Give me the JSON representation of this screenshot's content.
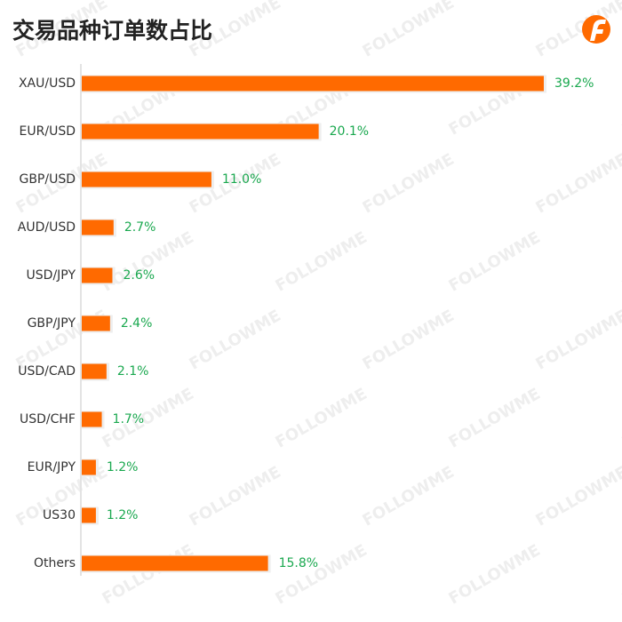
{
  "chart_data": {
    "type": "bar",
    "orientation": "horizontal",
    "title": "交易品种订单数占比",
    "watermark": "FOLLOWME",
    "categories": [
      "XAU/USD",
      "EUR/USD",
      "GBP/USD",
      "AUD/USD",
      "USD/JPY",
      "GBP/JPY",
      "USD/CAD",
      "USD/CHF",
      "EUR/JPY",
      "US30",
      "Others"
    ],
    "values": [
      39.2,
      20.1,
      11.0,
      2.7,
      2.6,
      2.4,
      2.1,
      1.7,
      1.2,
      1.2,
      15.8
    ],
    "value_labels": [
      "39.2%",
      "20.1%",
      "11.0%",
      "2.7%",
      "2.6%",
      "2.4%",
      "2.1%",
      "1.7%",
      "1.2%",
      "1.2%",
      "15.8%"
    ],
    "color": "#ff6a00",
    "label_color": "#1aa84f"
  }
}
